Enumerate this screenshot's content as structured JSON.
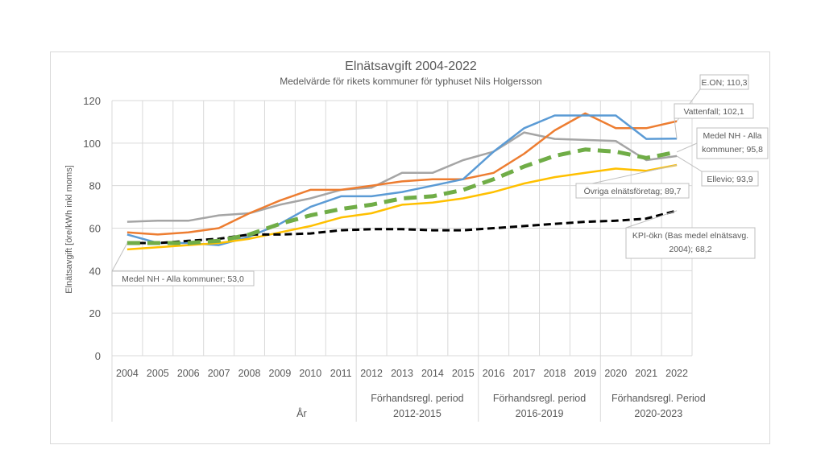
{
  "chart_data": {
    "type": "line",
    "title": "Elnätsavgift 2004-2022",
    "subtitle": "Medelvärde för rikets kommuner för typhuset Nils Holgersson",
    "xlabel": "År",
    "ylabel": "Elnätsavgift [öre/kWh inkl moms]",
    "ylim": [
      0,
      120
    ],
    "yticks": [
      "0",
      "20",
      "40",
      "60",
      "80",
      "100",
      "120"
    ],
    "grid": true,
    "x": [
      "2004",
      "2005",
      "2006",
      "2007",
      "2008",
      "2009",
      "2010",
      "2011",
      "2012",
      "2013",
      "2014",
      "2015",
      "2016",
      "2017",
      "2018",
      "2019",
      "2020",
      "2021",
      "2022"
    ],
    "period_groups": [
      {
        "label_line1": "",
        "label_line2": "År",
        "from": "2004",
        "to": "2011"
      },
      {
        "label_line1": "Förhandsregl. period",
        "label_line2": "2012-2015",
        "from": "2012",
        "to": "2015"
      },
      {
        "label_line1": "Förhandsregl. period",
        "label_line2": "2016-2019",
        "from": "2016",
        "to": "2019"
      },
      {
        "label_line1": "Förhandsregl. Period",
        "label_line2": "2020-2023",
        "from": "2020",
        "to": "2022"
      }
    ],
    "series": [
      {
        "name": "Ellevio",
        "color": "#a5a5a5",
        "dash": "solid",
        "values": [
          63,
          63.5,
          63.5,
          66,
          67,
          71,
          74,
          78,
          79,
          86,
          86,
          92,
          96,
          105,
          102,
          101.5,
          101,
          92,
          93.9
        ]
      },
      {
        "name": "E.ON",
        "color": "#ed7d31",
        "dash": "solid",
        "values": [
          58,
          57,
          58,
          60,
          67,
          73,
          78,
          78,
          80,
          82,
          83,
          83,
          86,
          95,
          106,
          114,
          107,
          107,
          110.3
        ]
      },
      {
        "name": "Vattenfall",
        "color": "#5b9bd5",
        "dash": "solid",
        "values": [
          57,
          53,
          53,
          52,
          56,
          62,
          70,
          75,
          75,
          77,
          80,
          83,
          96,
          107,
          113,
          113,
          113,
          102,
          102.1
        ]
      },
      {
        "name": "Övriga elnätsföretag",
        "color": "#ffc000",
        "dash": "solid",
        "values": [
          50,
          51,
          52,
          53,
          55,
          58,
          61,
          65,
          67,
          71,
          72,
          74,
          77,
          81,
          84,
          86,
          88,
          87,
          89.7
        ]
      },
      {
        "name": "KPI-ökn (Bas medel elnätsavg. 2004)",
        "color": "#000000",
        "dash": "dashed",
        "values": [
          53,
          53,
          54,
          55,
          57,
          57,
          57.5,
          59,
          59.5,
          59.5,
          59,
          59,
          60,
          61,
          62,
          63,
          63.5,
          64.5,
          68.2
        ]
      },
      {
        "name": "Medel NH - Alla kommuner",
        "color": "#70ad47",
        "dash": "dashed-thick",
        "values": [
          53,
          53,
          53,
          54,
          57,
          62,
          66,
          69,
          71,
          74,
          75,
          78,
          83,
          89,
          94,
          97,
          96,
          93,
          95.8
        ]
      }
    ],
    "annotations": [
      {
        "text_lines": [
          "E.ON; 110,3"
        ],
        "series": "E.ON",
        "point": "2022"
      },
      {
        "text_lines": [
          "Vattenfall; 102,1"
        ],
        "series": "Vattenfall",
        "point": "2022"
      },
      {
        "text_lines": [
          "Medel NH - Alla",
          "kommuner; 95,8"
        ],
        "series": "Medel NH - Alla kommuner",
        "point": "2022"
      },
      {
        "text_lines": [
          "Ellevio; 93,9"
        ],
        "series": "Ellevio",
        "point": "2022"
      },
      {
        "text_lines": [
          "Övriga elnätsföretag; 89,7"
        ],
        "series": "Övriga elnätsföretag",
        "point": "2022"
      },
      {
        "text_lines": [
          "KPI-ökn (Bas medel elnätsavg.",
          "2004); 68,2"
        ],
        "series": "KPI-ökn (Bas medel elnätsavg. 2004)",
        "point": "2022"
      },
      {
        "text_lines": [
          "Medel NH - Alla kommuner; 53,0"
        ],
        "series": "Medel NH - Alla kommuner",
        "point": "2004"
      }
    ]
  }
}
